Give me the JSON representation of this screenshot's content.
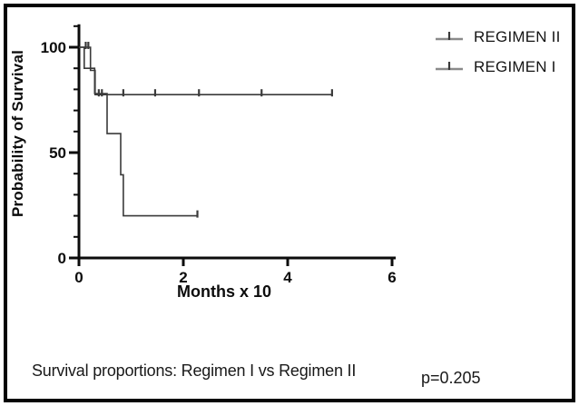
{
  "figure": {
    "caption": "Survival proportions: Regimen I vs Regimen II",
    "p_value": "p=0.205"
  },
  "legend": {
    "symbol": "censor-tick-line",
    "entries": [
      {
        "label": "REGIMEN II"
      },
      {
        "label": "REGIMEN I"
      }
    ]
  },
  "chart_data": {
    "type": "line",
    "subtype": "kaplan-meier-step",
    "title": "",
    "xlabel": "Months x 10",
    "ylabel": "Probability of Survival",
    "xlim": [
      0,
      6
    ],
    "ylim": [
      0,
      110
    ],
    "x_ticks": [
      0,
      2,
      4,
      6
    ],
    "y_ticks": [
      0,
      50,
      100
    ],
    "y_minor_step": 10,
    "y_minor_max": 110,
    "grid": false,
    "legend_position": "top-right",
    "p_value": "p=0.205",
    "axis_color": "#0c0c0c",
    "series": [
      {
        "name": "REGIMEN II",
        "color": "#3a3a3a",
        "steps": [
          [
            0,
            100
          ],
          [
            0.22,
            100
          ],
          [
            0.22,
            89
          ],
          [
            0.31,
            89
          ],
          [
            0.31,
            77.5
          ],
          [
            4.85,
            77.5
          ]
        ],
        "censor_marks": [
          [
            0.13,
            100
          ],
          [
            0.18,
            100
          ],
          [
            0.38,
            77.5
          ],
          [
            0.44,
            77.5
          ],
          [
            0.85,
            77.5
          ],
          [
            1.46,
            77.5
          ],
          [
            2.3,
            77.5
          ],
          [
            3.5,
            77.5
          ],
          [
            4.85,
            77.5
          ]
        ]
      },
      {
        "name": "REGIMEN I",
        "color": "#3a3a3a",
        "steps": [
          [
            0,
            100
          ],
          [
            0.1,
            100
          ],
          [
            0.1,
            90
          ],
          [
            0.3,
            90
          ],
          [
            0.3,
            78
          ],
          [
            0.54,
            78
          ],
          [
            0.54,
            59
          ],
          [
            0.8,
            59
          ],
          [
            0.8,
            39.5
          ],
          [
            0.85,
            39.5
          ],
          [
            0.85,
            20
          ],
          [
            2.27,
            20
          ]
        ],
        "censor_marks": [
          [
            2.27,
            20
          ]
        ]
      }
    ]
  }
}
